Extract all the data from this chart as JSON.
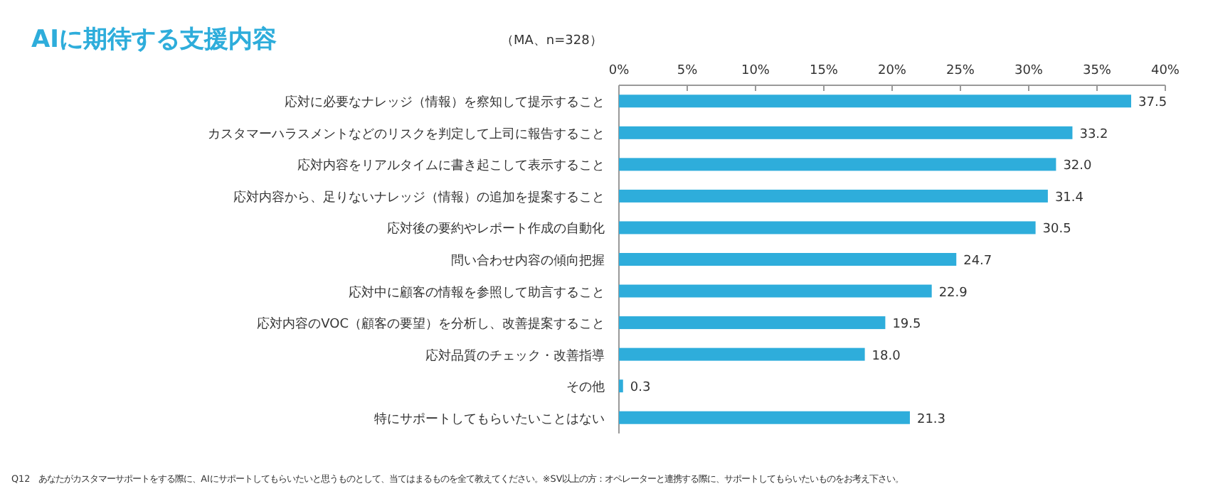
{
  "chart_data": {
    "type": "bar",
    "orientation": "horizontal",
    "title": "AIに期待する支援内容",
    "subtitle": "（MA、n=328）",
    "categories": [
      "応対に必要なナレッジ（情報）を察知して提示すること",
      "カスタマーハラスメントなどのリスクを判定して上司に報告すること",
      "応対内容をリアルタイムに書き起こして表示すること",
      "応対内容から、足りないナレッジ（情報）の追加を提案すること",
      "応対後の要約やレポート作成の自動化",
      "問い合わせ内容の傾向把握",
      "応対中に顧客の情報を参照して助言すること",
      "応対内容のVOC（顧客の要望）を分析し、改善提案すること",
      "応対品質のチェック・改善指導",
      "その他",
      "特にサポートしてもらいたいことはない"
    ],
    "values": [
      37.5,
      33.2,
      32.0,
      31.4,
      30.5,
      24.7,
      22.9,
      19.5,
      18.0,
      0.3,
      21.3
    ],
    "value_labels": [
      "37.5",
      "33.2",
      "32.0",
      "31.4",
      "30.5",
      "24.7",
      "22.9",
      "19.5",
      "18.0",
      "0.3",
      "21.3"
    ],
    "color": "#2eaddb",
    "xlim": [
      0,
      40
    ],
    "xticks": [
      {
        "value": 0,
        "label": "0%"
      },
      {
        "value": 5,
        "label": "5%"
      },
      {
        "value": 10,
        "label": "10%"
      },
      {
        "value": 15,
        "label": "15%"
      },
      {
        "value": 20,
        "label": "20%"
      },
      {
        "value": 25,
        "label": "25%"
      },
      {
        "value": 30,
        "label": "30%"
      },
      {
        "value": 35,
        "label": "35%"
      },
      {
        "value": 40,
        "label": "40%"
      }
    ],
    "annotations": [
      "Q12　あなたがカスタマーサポートをする際に、AIにサポートしてもらいたいと思うものとして、当てはまるものを全て教えてください。※SV以上の方：オペレーターと連携する際に、サポートしてもらいたいものをお考え下さい。"
    ]
  }
}
